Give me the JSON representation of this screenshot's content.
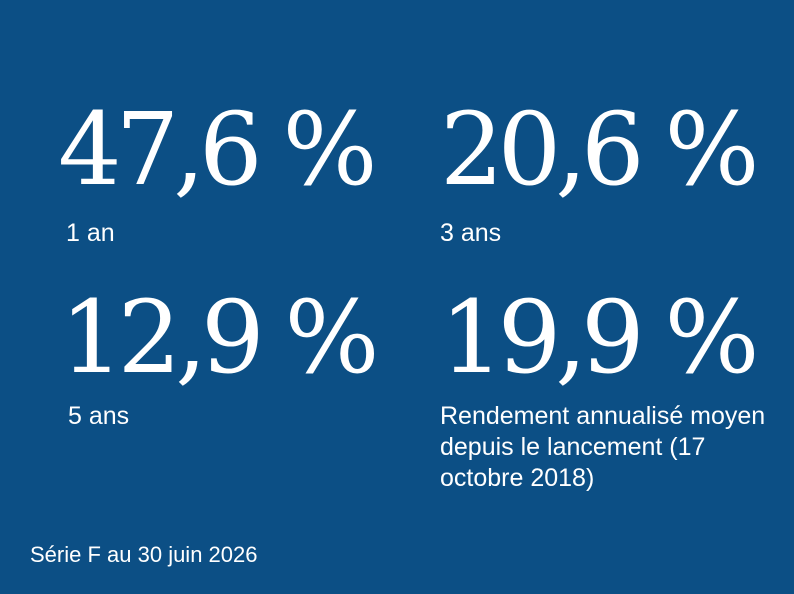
{
  "background_color": "#0c4f85",
  "text_color": "#ffffff",
  "stats": [
    {
      "value": "47,6 %",
      "label": "1 an"
    },
    {
      "value": "20,6 %",
      "label": "3 ans"
    },
    {
      "value": "12,9 %",
      "label": "5 ans"
    },
    {
      "value": "19,9 %",
      "label": "Rendement annualisé moyen depuis le lancement (17 octobre 2018)"
    }
  ],
  "footnote": "Série F au 30 juin 2026"
}
